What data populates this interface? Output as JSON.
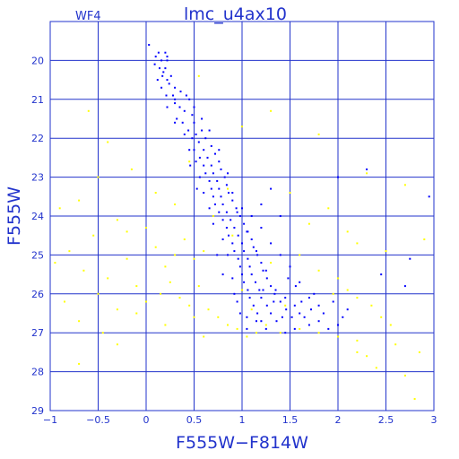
{
  "chart_data": {
    "type": "scatter",
    "title": "lmc_u4ax10",
    "panel_label": "WF4",
    "xlabel": "F555W−F814W",
    "ylabel": "F555W",
    "xlim": [
      -1,
      3
    ],
    "ylim": [
      29,
      19
    ],
    "y_inverted": true,
    "grid": true,
    "x_ticks": [
      -1,
      -0.5,
      0,
      0.5,
      1,
      1.5,
      2,
      2.5,
      3
    ],
    "x_tick_labels": [
      "−1",
      "−0.5",
      "0",
      "0.5",
      "1",
      "1.5",
      "2",
      "2.5",
      "3"
    ],
    "y_ticks": [
      20,
      21,
      22,
      23,
      24,
      25,
      26,
      27,
      28,
      29
    ],
    "y_tick_labels": [
      "20",
      "21",
      "22",
      "23",
      "24",
      "25",
      "26",
      "27",
      "28",
      "29"
    ],
    "colors": {
      "frame": "#2233cc",
      "grid": "#2233cc",
      "text": "#2233cc",
      "main_sequence": "#0000ff",
      "field": "#ffff00"
    },
    "series": [
      {
        "color": "#0000ff",
        "points": [
          [
            0.03,
            19.6
          ],
          [
            0.13,
            19.8
          ],
          [
            0.2,
            19.8
          ],
          [
            0.1,
            19.9
          ],
          [
            0.22,
            19.9
          ],
          [
            0.16,
            20.0
          ],
          [
            0.22,
            20.0
          ],
          [
            0.09,
            20.1
          ],
          [
            0.14,
            20.2
          ],
          [
            0.2,
            20.2
          ],
          [
            0.17,
            20.4
          ],
          [
            0.12,
            20.5
          ],
          [
            0.22,
            20.5
          ],
          [
            0.16,
            20.7
          ],
          [
            0.24,
            20.6
          ],
          [
            0.3,
            20.7
          ],
          [
            0.21,
            20.9
          ],
          [
            0.28,
            20.9
          ],
          [
            0.36,
            20.8
          ],
          [
            0.3,
            21.1
          ],
          [
            0.35,
            21.2
          ],
          [
            0.45,
            21.0
          ],
          [
            0.4,
            21.3
          ],
          [
            0.48,
            21.4
          ],
          [
            0.38,
            21.6
          ],
          [
            0.5,
            21.6
          ],
          [
            0.44,
            21.8
          ],
          [
            0.52,
            21.9
          ],
          [
            0.58,
            21.8
          ],
          [
            0.48,
            22.0
          ],
          [
            0.55,
            22.1
          ],
          [
            0.62,
            22.0
          ],
          [
            0.5,
            22.3
          ],
          [
            0.6,
            22.3
          ],
          [
            0.68,
            22.2
          ],
          [
            0.56,
            22.5
          ],
          [
            0.64,
            22.5
          ],
          [
            0.72,
            22.4
          ],
          [
            0.6,
            22.7
          ],
          [
            0.68,
            22.7
          ],
          [
            0.76,
            22.6
          ],
          [
            0.62,
            22.9
          ],
          [
            0.7,
            22.9
          ],
          [
            0.78,
            22.8
          ],
          [
            0.66,
            23.1
          ],
          [
            0.74,
            23.1
          ],
          [
            0.82,
            23.0
          ],
          [
            0.68,
            23.3
          ],
          [
            0.76,
            23.3
          ],
          [
            0.84,
            23.2
          ],
          [
            0.7,
            23.5
          ],
          [
            0.78,
            23.5
          ],
          [
            0.86,
            23.4
          ],
          [
            0.72,
            23.7
          ],
          [
            0.8,
            23.7
          ],
          [
            0.9,
            23.6
          ],
          [
            0.76,
            23.9
          ],
          [
            0.84,
            23.9
          ],
          [
            0.94,
            23.8
          ],
          [
            0.8,
            24.1
          ],
          [
            0.88,
            24.1
          ],
          [
            0.98,
            24.0
          ],
          [
            0.84,
            24.3
          ],
          [
            0.92,
            24.3
          ],
          [
            1.02,
            24.2
          ],
          [
            0.86,
            24.5
          ],
          [
            0.96,
            24.5
          ],
          [
            1.06,
            24.4
          ],
          [
            0.9,
            24.7
          ],
          [
            1.0,
            24.7
          ],
          [
            1.1,
            24.6
          ],
          [
            0.92,
            24.9
          ],
          [
            1.02,
            24.9
          ],
          [
            1.12,
            24.8
          ],
          [
            0.96,
            25.1
          ],
          [
            1.06,
            25.1
          ],
          [
            1.16,
            25.0
          ],
          [
            0.98,
            25.3
          ],
          [
            1.08,
            25.3
          ],
          [
            1.2,
            25.2
          ],
          [
            1.0,
            25.5
          ],
          [
            1.1,
            25.5
          ],
          [
            1.22,
            25.4
          ],
          [
            1.02,
            25.7
          ],
          [
            1.14,
            25.7
          ],
          [
            1.26,
            25.6
          ],
          [
            1.06,
            25.9
          ],
          [
            1.18,
            25.9
          ],
          [
            1.3,
            25.8
          ],
          [
            1.08,
            26.1
          ],
          [
            1.2,
            26.1
          ],
          [
            1.34,
            26.0
          ],
          [
            1.12,
            26.3
          ],
          [
            1.26,
            26.3
          ],
          [
            1.4,
            26.2
          ],
          [
            1.16,
            26.5
          ],
          [
            1.3,
            26.5
          ],
          [
            1.46,
            26.4
          ],
          [
            1.2,
            26.7
          ],
          [
            1.36,
            26.7
          ],
          [
            1.52,
            26.6
          ],
          [
            1.6,
            26.5
          ],
          [
            1.7,
            26.8
          ],
          [
            1.8,
            26.7
          ],
          [
            1.9,
            26.9
          ],
          [
            2.0,
            26.8
          ],
          [
            1.55,
            26.9
          ],
          [
            1.45,
            27.0
          ],
          [
            1.25,
            26.9
          ],
          [
            1.05,
            26.6
          ],
          [
            0.95,
            26.2
          ],
          [
            0.9,
            25.6
          ],
          [
            0.85,
            25.0
          ],
          [
            0.8,
            24.6
          ],
          [
            0.7,
            24.2
          ],
          [
            0.66,
            23.8
          ],
          [
            0.6,
            23.4
          ],
          [
            0.56,
            23.0
          ],
          [
            0.52,
            22.6
          ],
          [
            0.45,
            22.3
          ],
          [
            0.4,
            21.9
          ],
          [
            0.32,
            21.5
          ],
          [
            0.3,
            21.0
          ],
          [
            0.26,
            20.4
          ],
          [
            1.2,
            24.3
          ],
          [
            1.3,
            24.7
          ],
          [
            1.4,
            25.0
          ],
          [
            1.5,
            25.3
          ],
          [
            1.6,
            25.7
          ],
          [
            1.7,
            26.1
          ],
          [
            1.8,
            26.3
          ],
          [
            1.45,
            26.1
          ],
          [
            1.35,
            25.9
          ],
          [
            1.25,
            25.4
          ],
          [
            1.15,
            24.9
          ],
          [
            1.05,
            24.4
          ],
          [
            0.95,
            23.9
          ],
          [
            0.9,
            23.4
          ],
          [
            1.0,
            23.8
          ],
          [
            0.85,
            22.9
          ],
          [
            0.76,
            22.3
          ],
          [
            0.66,
            21.8
          ],
          [
            0.58,
            21.5
          ],
          [
            0.5,
            21.2
          ],
          [
            0.42,
            20.9
          ],
          [
            1.15,
            26.7
          ],
          [
            1.05,
            26.9
          ],
          [
            0.98,
            26.5
          ],
          [
            1.55,
            26.3
          ],
          [
            1.65,
            26.6
          ],
          [
            1.75,
            26.0
          ],
          [
            1.85,
            26.5
          ],
          [
            1.95,
            26.2
          ],
          [
            2.05,
            26.6
          ],
          [
            2.1,
            26.4
          ],
          [
            1.3,
            23.3
          ],
          [
            1.4,
            24.0
          ],
          [
            2.0,
            23.0
          ],
          [
            2.3,
            22.8
          ],
          [
            2.95,
            23.5
          ],
          [
            2.75,
            25.1
          ],
          [
            2.7,
            25.8
          ],
          [
            2.45,
            25.5
          ],
          [
            1.1,
            24.0
          ],
          [
            1.2,
            23.7
          ],
          [
            0.3,
            21.6
          ],
          [
            0.22,
            21.2
          ],
          [
            0.18,
            20.3
          ],
          [
            0.46,
            22.7
          ],
          [
            0.53,
            23.3
          ],
          [
            0.74,
            25.0
          ],
          [
            0.8,
            25.5
          ],
          [
            0.92,
            26.0
          ],
          [
            1.22,
            25.9
          ],
          [
            1.33,
            26.2
          ],
          [
            1.42,
            26.6
          ],
          [
            1.62,
            26.2
          ],
          [
            1.72,
            26.4
          ],
          [
            1.56,
            25.8
          ],
          [
            1.48,
            25.6
          ]
        ]
      },
      {
        "color": "#ffff00",
        "points": [
          [
            -0.6,
            21.3
          ],
          [
            -0.4,
            22.1
          ],
          [
            -0.5,
            23.0
          ],
          [
            -0.7,
            23.6
          ],
          [
            -0.9,
            23.8
          ],
          [
            -0.3,
            24.1
          ],
          [
            -0.55,
            24.5
          ],
          [
            -0.8,
            24.9
          ],
          [
            -0.95,
            25.2
          ],
          [
            -0.65,
            25.4
          ],
          [
            -0.4,
            25.6
          ],
          [
            -0.2,
            25.1
          ],
          [
            -0.1,
            25.8
          ],
          [
            0.0,
            24.3
          ],
          [
            0.1,
            24.8
          ],
          [
            0.2,
            25.3
          ],
          [
            0.3,
            25.0
          ],
          [
            0.4,
            24.6
          ],
          [
            0.5,
            25.1
          ],
          [
            0.6,
            24.9
          ],
          [
            -0.5,
            26.0
          ],
          [
            -0.85,
            26.2
          ],
          [
            -0.3,
            26.4
          ],
          [
            -0.1,
            26.5
          ],
          [
            0.0,
            26.2
          ],
          [
            0.15,
            26.0
          ],
          [
            0.25,
            25.7
          ],
          [
            0.35,
            26.1
          ],
          [
            0.45,
            26.3
          ],
          [
            0.55,
            25.8
          ],
          [
            0.65,
            26.4
          ],
          [
            0.75,
            26.6
          ],
          [
            0.85,
            26.8
          ],
          [
            0.95,
            26.9
          ],
          [
            1.05,
            27.1
          ],
          [
            1.15,
            27.0
          ],
          [
            1.25,
            26.8
          ],
          [
            1.4,
            27.0
          ],
          [
            1.6,
            26.9
          ],
          [
            1.8,
            27.0
          ],
          [
            2.0,
            27.1
          ],
          [
            2.2,
            27.2
          ],
          [
            2.3,
            27.6
          ],
          [
            2.4,
            27.9
          ],
          [
            2.6,
            27.3
          ],
          [
            2.85,
            27.5
          ],
          [
            2.7,
            28.1
          ],
          [
            2.8,
            28.7
          ],
          [
            -0.7,
            26.7
          ],
          [
            -0.3,
            27.3
          ],
          [
            0.2,
            26.8
          ],
          [
            0.5,
            26.6
          ],
          [
            1.0,
            25.9
          ],
          [
            1.3,
            25.2
          ],
          [
            1.6,
            25.0
          ],
          [
            1.8,
            25.4
          ],
          [
            2.0,
            25.6
          ],
          [
            2.1,
            25.9
          ],
          [
            2.2,
            26.1
          ],
          [
            2.35,
            26.3
          ],
          [
            2.45,
            26.6
          ],
          [
            0.9,
            24.5
          ],
          [
            0.7,
            24.0
          ],
          [
            0.85,
            23.3
          ],
          [
            1.5,
            23.4
          ],
          [
            1.9,
            23.8
          ],
          [
            2.3,
            22.9
          ],
          [
            2.7,
            23.2
          ],
          [
            2.9,
            24.6
          ],
          [
            0.55,
            20.4
          ],
          [
            1.0,
            21.7
          ],
          [
            1.3,
            21.3
          ],
          [
            1.8,
            21.9
          ],
          [
            2.1,
            24.4
          ],
          [
            2.2,
            24.7
          ],
          [
            1.7,
            24.2
          ],
          [
            0.3,
            23.7
          ],
          [
            0.1,
            23.4
          ],
          [
            -0.15,
            22.8
          ],
          [
            0.45,
            22.6
          ],
          [
            -0.7,
            27.8
          ],
          [
            -0.45,
            27.0
          ],
          [
            0.6,
            27.1
          ],
          [
            1.1,
            26.4
          ],
          [
            1.45,
            26.3
          ],
          [
            1.95,
            26.0
          ],
          [
            2.5,
            24.9
          ],
          [
            2.55,
            26.8
          ],
          [
            2.2,
            27.5
          ],
          [
            -0.2,
            24.4
          ]
        ]
      }
    ]
  }
}
